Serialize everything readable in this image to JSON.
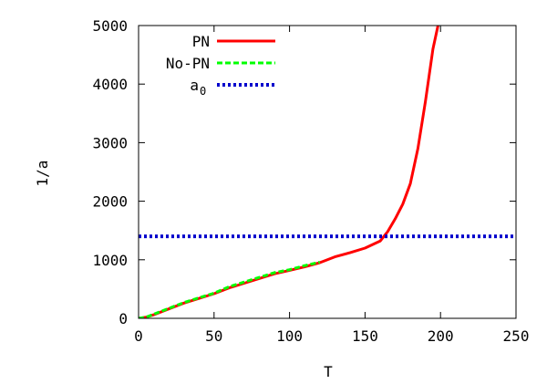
{
  "chart_data": {
    "type": "line",
    "xlabel": "T",
    "ylabel": "1/a",
    "xlim": [
      0,
      250
    ],
    "ylim": [
      0,
      5000
    ],
    "x_ticks": [
      0,
      50,
      100,
      150,
      200,
      250
    ],
    "y_ticks": [
      0,
      1000,
      2000,
      3000,
      4000,
      5000
    ],
    "grid": false,
    "legend_position": "top-left",
    "series": [
      {
        "name": "PN",
        "color": "#ff0000",
        "style": "solid",
        "x": [
          0,
          5,
          10,
          20,
          30,
          40,
          50,
          60,
          70,
          80,
          90,
          100,
          110,
          120,
          130,
          140,
          150,
          155,
          160,
          165,
          170,
          175,
          180,
          185,
          190,
          195,
          200
        ],
        "y": [
          0,
          20,
          60,
          160,
          260,
          340,
          420,
          520,
          600,
          680,
          760,
          820,
          880,
          950,
          1050,
          1120,
          1200,
          1260,
          1320,
          1480,
          1700,
          1950,
          2300,
          2900,
          3700,
          4600,
          5200
        ]
      },
      {
        "name": "No-PN",
        "color": "#00ff00",
        "style": "dashed",
        "x": [
          0,
          5,
          10,
          20,
          30,
          40,
          50,
          60,
          70,
          80,
          90,
          100,
          110,
          120
        ],
        "y": [
          0,
          20,
          70,
          170,
          270,
          350,
          430,
          540,
          620,
          700,
          780,
          830,
          900,
          960
        ]
      },
      {
        "name": "a_0",
        "display_name": "a0",
        "color": "#0000cc",
        "style": "dotted",
        "x": [
          0,
          250
        ],
        "y": [
          1400,
          1400
        ]
      }
    ]
  },
  "legend": {
    "entries": [
      {
        "label": "PN",
        "color": "#ff0000",
        "style": "solid"
      },
      {
        "label": "No-PN",
        "color": "#00ff00",
        "style": "dashed"
      },
      {
        "label_main": "a",
        "label_sub": "0",
        "color": "#0000cc",
        "style": "dotted"
      }
    ]
  }
}
